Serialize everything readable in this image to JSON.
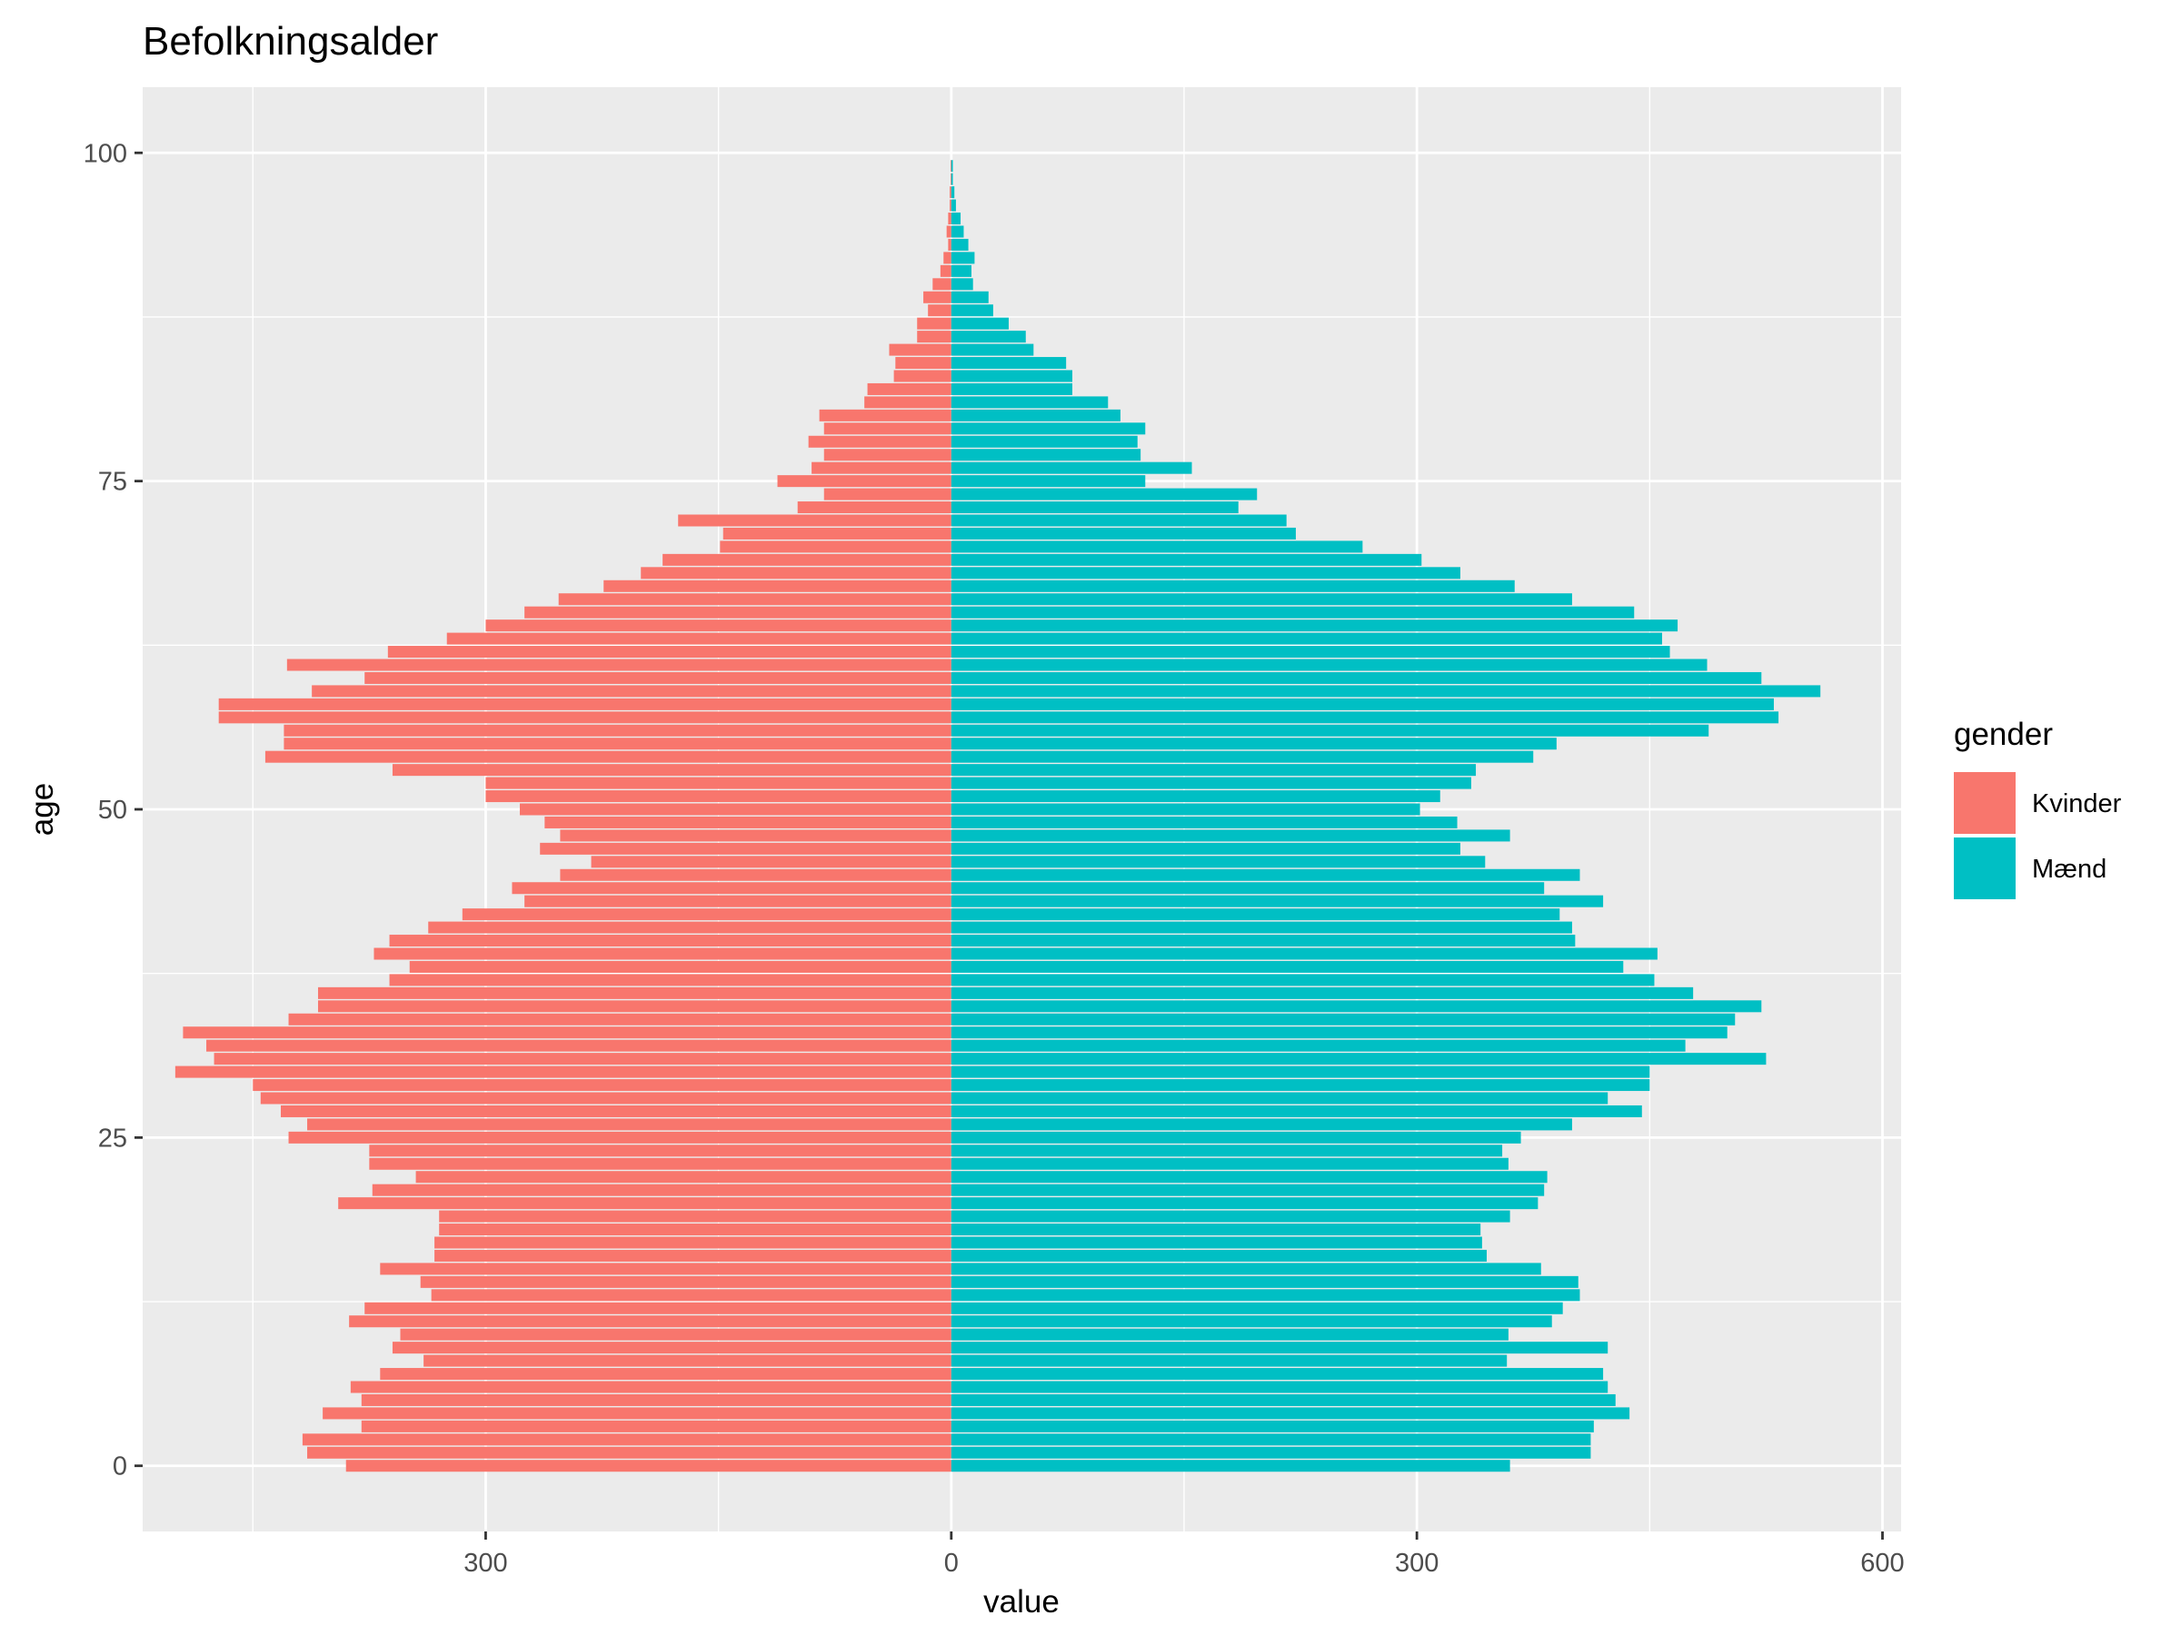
{
  "chart_data": {
    "type": "bar",
    "orientation": "horizontal",
    "title": "Befolkningsalder",
    "xlabel": "value",
    "ylabel": "age",
    "xlim": [
      -521,
      612
    ],
    "ylim": [
      -5,
      105
    ],
    "x_ticks": [
      -300,
      0,
      300,
      600
    ],
    "x_tick_labels": [
      "300",
      "0",
      "300",
      "600"
    ],
    "y_ticks": [
      0,
      25,
      50,
      75,
      100
    ],
    "y_tick_labels": [
      "0",
      "25",
      "50",
      "75",
      "100"
    ],
    "grid": true,
    "legend": {
      "title": "gender",
      "position": "right"
    },
    "ages": [
      0,
      1,
      2,
      3,
      4,
      5,
      6,
      7,
      8,
      9,
      10,
      11,
      12,
      13,
      14,
      15,
      16,
      17,
      18,
      19,
      20,
      21,
      22,
      23,
      24,
      25,
      26,
      27,
      28,
      29,
      30,
      31,
      32,
      33,
      34,
      35,
      36,
      37,
      38,
      39,
      40,
      41,
      42,
      43,
      44,
      45,
      46,
      47,
      48,
      49,
      50,
      51,
      52,
      53,
      54,
      55,
      56,
      57,
      58,
      59,
      60,
      61,
      62,
      63,
      64,
      65,
      66,
      67,
      68,
      69,
      70,
      71,
      72,
      73,
      74,
      75,
      76,
      77,
      78,
      79,
      80,
      81,
      82,
      83,
      84,
      85,
      86,
      87,
      88,
      89,
      90,
      91,
      92,
      93,
      94,
      95,
      96,
      97,
      98,
      99
    ],
    "series": [
      {
        "name": "Kvinder",
        "color": "#F8766D",
        "side": "left",
        "values": [
          390,
          415,
          418,
          380,
          405,
          380,
          387,
          368,
          340,
          360,
          355,
          388,
          378,
          335,
          342,
          368,
          333,
          333,
          330,
          330,
          395,
          373,
          345,
          375,
          375,
          427,
          415,
          432,
          445,
          450,
          500,
          475,
          480,
          495,
          427,
          408,
          408,
          362,
          349,
          372,
          362,
          337,
          315,
          275,
          283,
          252,
          232,
          265,
          252,
          262,
          278,
          300,
          300,
          360,
          442,
          430,
          430,
          472,
          472,
          412,
          378,
          428,
          363,
          325,
          300,
          275,
          253,
          224,
          200,
          186,
          149,
          147,
          176,
          99,
          82,
          112,
          90,
          82,
          92,
          82,
          85,
          56,
          54,
          37,
          36,
          40,
          22,
          22,
          15,
          18,
          12,
          7,
          5,
          2,
          3,
          2,
          1,
          1,
          0.5,
          0.5
        ]
      },
      {
        "name": "Mænd",
        "color": "#00BFC4",
        "side": "right",
        "values": [
          360,
          412,
          412,
          414,
          437,
          428,
          423,
          420,
          358,
          423,
          359,
          387,
          394,
          405,
          404,
          380,
          345,
          342,
          341,
          360,
          378,
          382,
          384,
          359,
          355,
          367,
          400,
          445,
          423,
          450,
          450,
          525,
          473,
          500,
          505,
          522,
          478,
          453,
          433,
          455,
          402,
          400,
          392,
          420,
          382,
          405,
          344,
          328,
          360,
          326,
          302,
          315,
          335,
          338,
          375,
          390,
          488,
          533,
          530,
          560,
          522,
          487,
          463,
          458,
          468,
          440,
          400,
          363,
          328,
          303,
          265,
          222,
          216,
          185,
          197,
          125,
          155,
          122,
          120,
          125,
          109,
          101,
          78,
          78,
          74,
          53,
          48,
          37,
          27,
          24,
          14,
          13,
          15,
          11,
          8,
          6,
          3,
          2,
          1,
          1
        ]
      }
    ]
  }
}
